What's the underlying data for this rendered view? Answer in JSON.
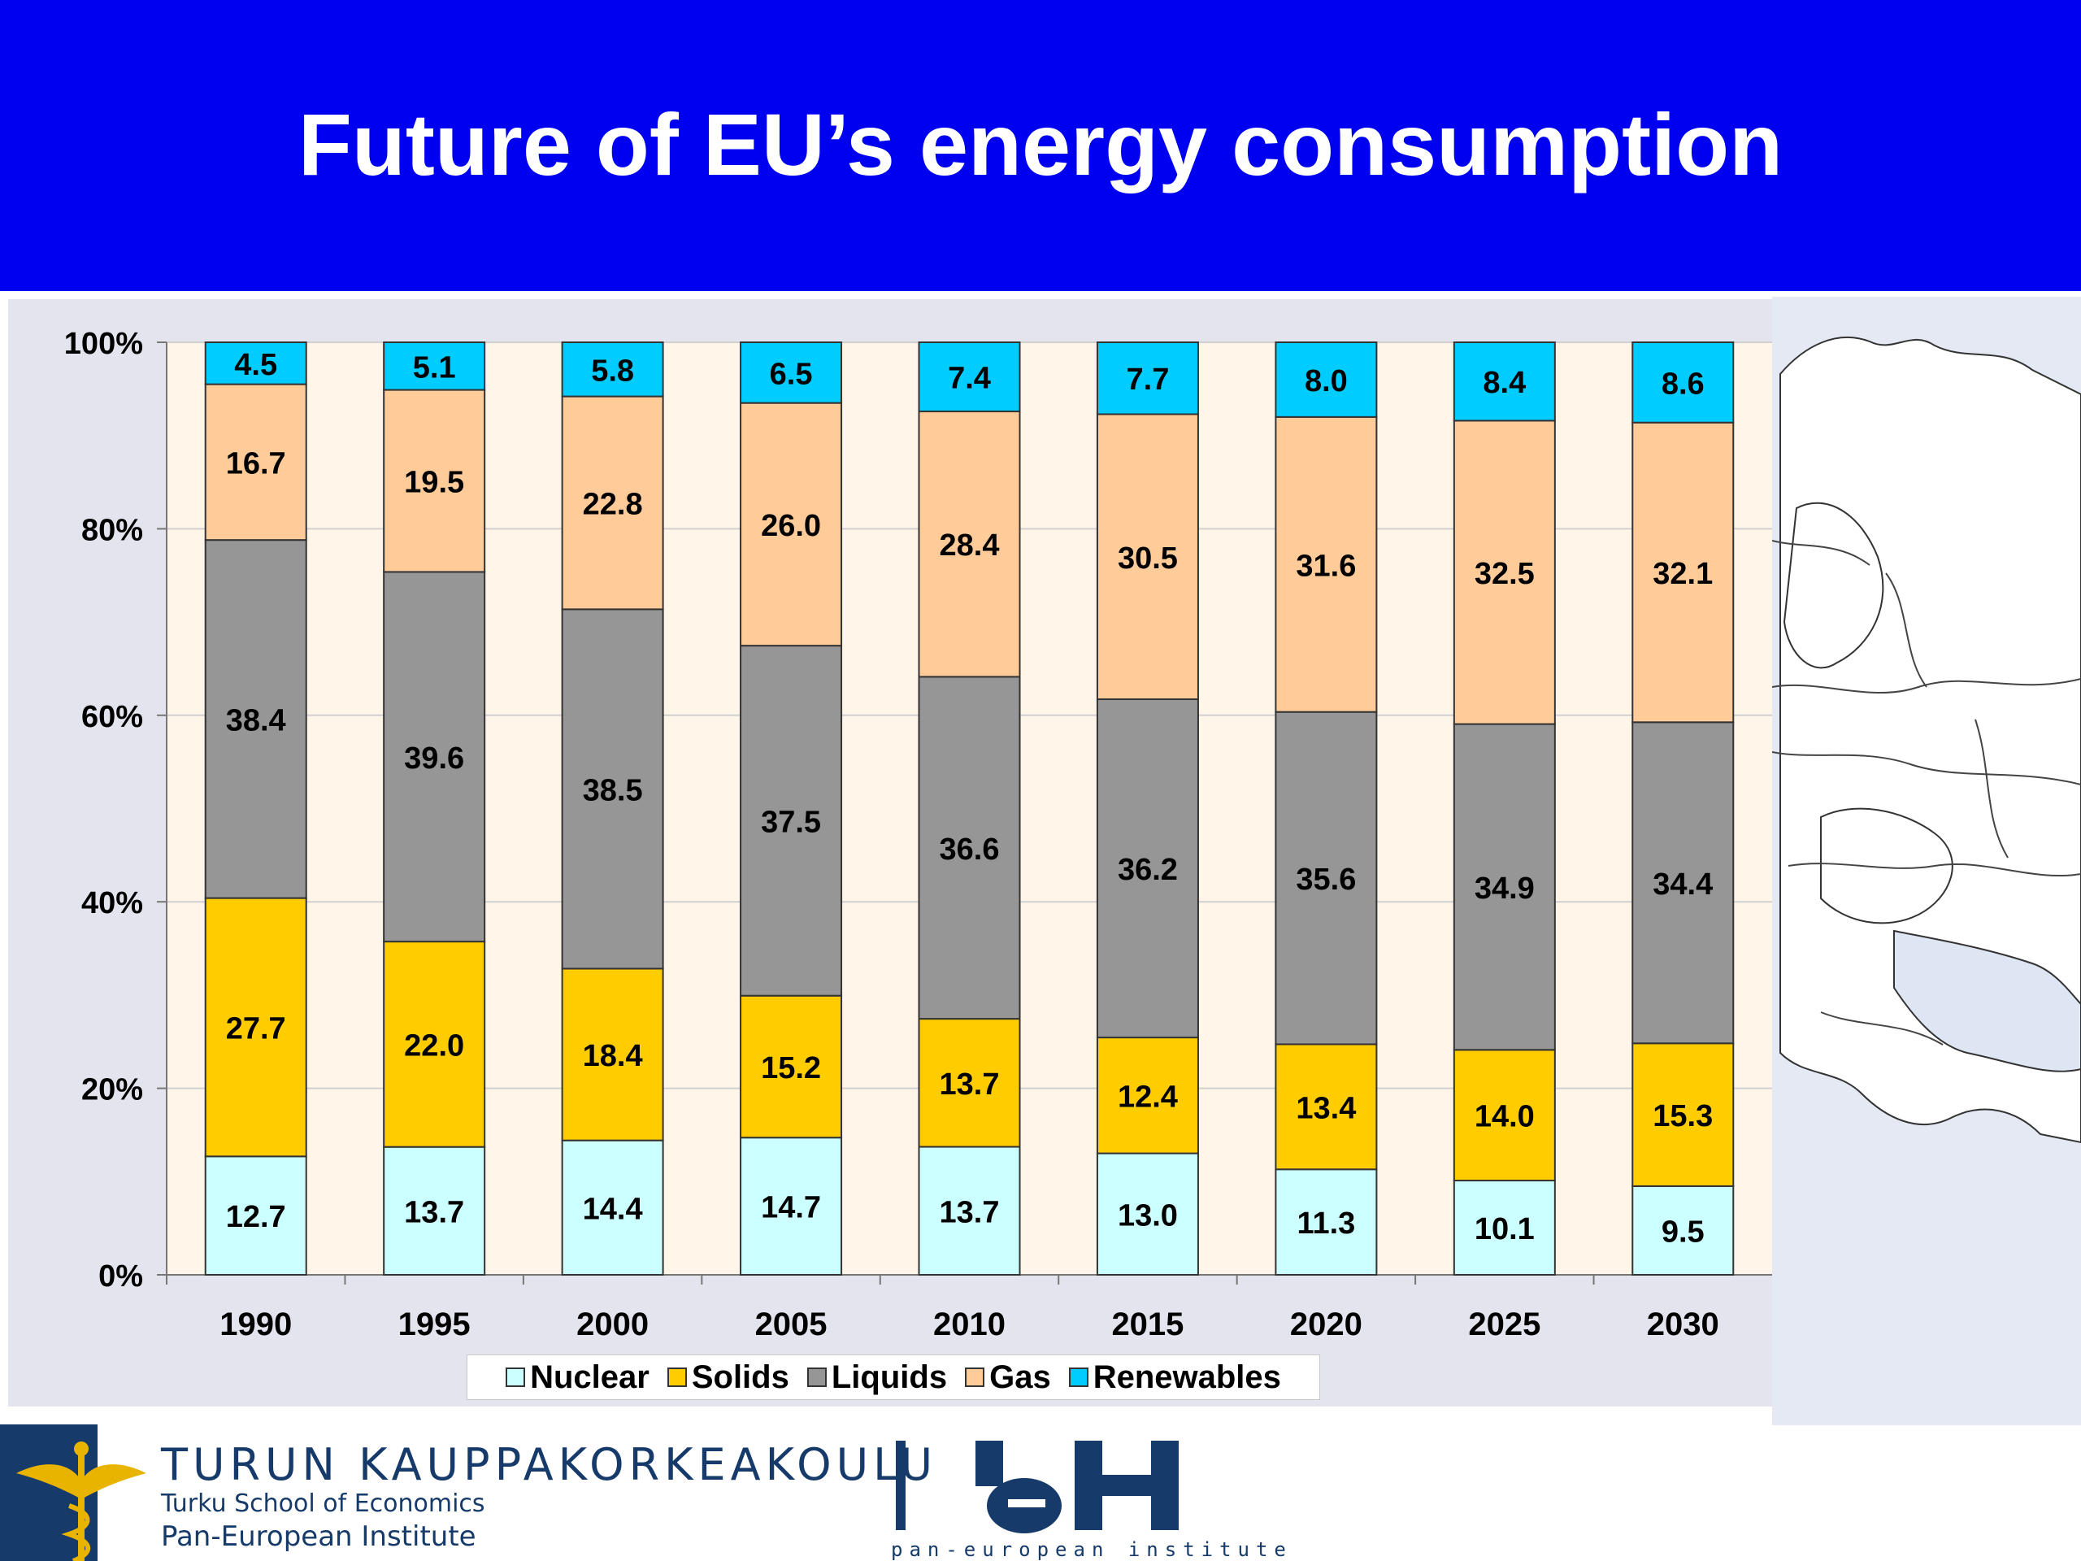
{
  "slide": {
    "title": "Future of EU’s energy consumption"
  },
  "chart_data": {
    "type": "bar",
    "stacked": true,
    "percent_stacked": true,
    "categories": [
      "1990",
      "1995",
      "2000",
      "2005",
      "2010",
      "2015",
      "2020",
      "2025",
      "2030"
    ],
    "series": [
      {
        "name": "Nuclear",
        "color": "#ccffff",
        "values": [
          12.7,
          13.7,
          14.4,
          14.7,
          13.7,
          13.0,
          11.3,
          10.1,
          9.5
        ]
      },
      {
        "name": "Solids",
        "color": "#ffcc00",
        "values": [
          27.7,
          22.0,
          18.4,
          15.2,
          13.7,
          12.4,
          13.4,
          14.0,
          15.3
        ]
      },
      {
        "name": "Liquids",
        "color": "#969696",
        "values": [
          38.4,
          39.6,
          38.5,
          37.5,
          36.6,
          36.2,
          35.6,
          34.9,
          34.4
        ]
      },
      {
        "name": "Gas",
        "color": "#ffcc99",
        "values": [
          16.7,
          19.5,
          22.8,
          26.0,
          28.4,
          30.5,
          31.6,
          32.5,
          32.1
        ]
      },
      {
        "name": "Renewables",
        "color": "#00ccff",
        "values": [
          4.5,
          5.1,
          5.8,
          6.5,
          7.4,
          7.7,
          8.0,
          8.4,
          8.6
        ]
      }
    ],
    "ylim": [
      0,
      100
    ],
    "y_ticks": [
      "0%",
      "20%",
      "40%",
      "60%",
      "80%",
      "100%"
    ],
    "legend_position": "bottom",
    "grid": true,
    "plot_background": "#fff5e8"
  },
  "footer": {
    "tse_name_fi": "TURUN KAUPPAKORKEAKOULU",
    "tse_name_en": "Turku School of Economics",
    "tse_institute": "Pan-European Institute",
    "pei_tagline": "pan-european institute"
  }
}
